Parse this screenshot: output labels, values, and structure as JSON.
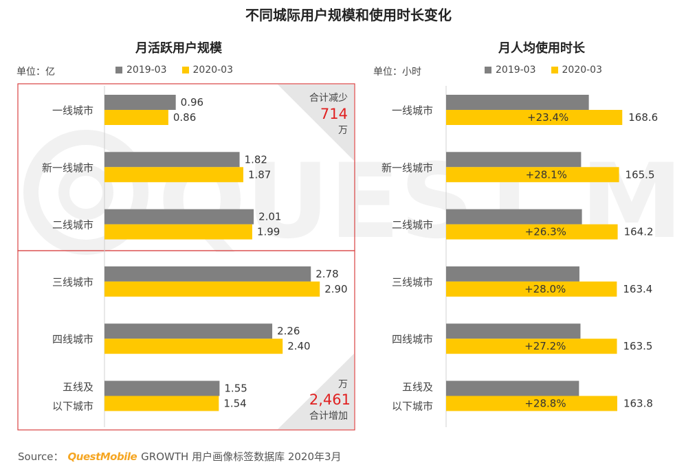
{
  "title": "不同城际用户规模和使用时长变化",
  "colors": {
    "series_2019": "#808080",
    "series_2020": "#ffc800",
    "highlight": "#e02020",
    "border": "#d84040"
  },
  "left_panel": {
    "title": "月活跃用户规模",
    "unit": "单位：亿",
    "legend": [
      "2019-03",
      "2020-03"
    ],
    "annotation_top": {
      "label": "合计减少",
      "value": "714",
      "suffix": "万"
    },
    "annotation_bottom": {
      "label": "合计增加",
      "value": "2,461",
      "suffix": "万"
    }
  },
  "right_panel": {
    "title": "月人均使用时长",
    "unit": "单位：小时",
    "legend": [
      "2019-03",
      "2020-03"
    ]
  },
  "chart_data": [
    {
      "type": "bar",
      "orientation": "horizontal",
      "title": "月活跃用户规模",
      "unit": "亿",
      "categories": [
        "一线城市",
        "新一线城市",
        "二线城市",
        "三线城市",
        "四线城市",
        "五线及以下城市"
      ],
      "category_lines": [
        [
          "一线城市"
        ],
        [
          "新一线城市"
        ],
        [
          "二线城市"
        ],
        [
          "三线城市"
        ],
        [
          "四线城市"
        ],
        [
          "五线及",
          "以下城市"
        ]
      ],
      "series": [
        {
          "name": "2019-03",
          "values": [
            0.96,
            1.82,
            2.01,
            2.78,
            2.26,
            1.55
          ],
          "labels": [
            "0.96",
            "1.82",
            "2.01",
            "2.78",
            "2.26",
            "1.55"
          ]
        },
        {
          "name": "2020-03",
          "values": [
            0.86,
            1.87,
            1.99,
            2.9,
            2.4,
            1.54
          ],
          "labels": [
            "0.86",
            "1.87",
            "1.99",
            "2.90",
            "2.40",
            "1.54"
          ]
        }
      ],
      "xlim": [
        0,
        3.2
      ]
    },
    {
      "type": "bar",
      "orientation": "horizontal",
      "title": "月人均使用时长",
      "unit": "小时",
      "categories": [
        "一线城市",
        "新一线城市",
        "二线城市",
        "三线城市",
        "四线城市",
        "五线及以下城市"
      ],
      "category_lines": [
        [
          "一线城市"
        ],
        [
          "新一线城市"
        ],
        [
          "二线城市"
        ],
        [
          "三线城市"
        ],
        [
          "四线城市"
        ],
        [
          "五线及",
          "以下城市"
        ]
      ],
      "series": [
        {
          "name": "2019-03",
          "values": [
            136.6,
            129.2,
            130.0,
            127.6,
            128.6,
            127.2
          ]
        },
        {
          "name": "2020-03",
          "values": [
            168.6,
            165.5,
            164.2,
            163.4,
            163.5,
            163.8
          ],
          "labels": [
            "168.6",
            "165.5",
            "164.2",
            "163.4",
            "163.5",
            "163.8"
          ]
        }
      ],
      "growth_labels": [
        "+23.4%",
        "+28.1%",
        "+26.3%",
        "+28.0%",
        "+27.2%",
        "+28.8%"
      ],
      "xlim": [
        0,
        290
      ]
    }
  ],
  "source": {
    "prefix": "Source：",
    "brand": "QuestMobile",
    "text": "GROWTH 用户画像标签数据库 2020年3月"
  },
  "watermark": "QUEST MOBILE"
}
